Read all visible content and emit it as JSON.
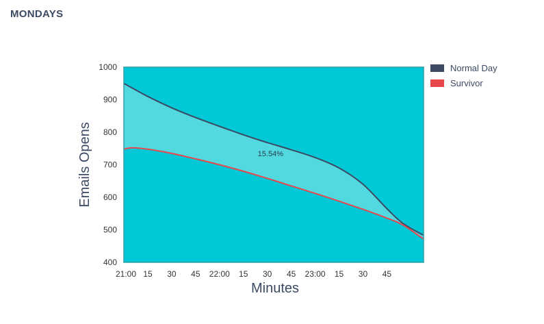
{
  "page": {
    "title": "MONDAYS"
  },
  "chart_data": {
    "type": "area",
    "x_ticks": [
      "21:00",
      "15",
      "30",
      "45",
      "22:00",
      "15",
      "30",
      "45",
      "23:00",
      "15",
      "30",
      "45"
    ],
    "x_tick_minutes": [
      0,
      15,
      30,
      45,
      60,
      75,
      90,
      105,
      120,
      135,
      150,
      165
    ],
    "xlabel": "Minutes",
    "ylabel": "Emails Opens",
    "ylim": [
      400,
      1000
    ],
    "y_ticks": [
      400,
      500,
      600,
      700,
      800,
      900,
      1000
    ],
    "xlim_minutes": [
      0,
      188
    ],
    "grid": false,
    "legend_position": "right",
    "series": [
      {
        "name": "Normal Day",
        "color": "#3b4a62",
        "x_minutes": [
          0,
          15,
          30,
          45,
          60,
          75,
          90,
          105,
          120,
          135,
          150,
          165,
          175,
          188
        ],
        "values": [
          950,
          910,
          875,
          845,
          818,
          792,
          768,
          746,
          722,
          690,
          640,
          565,
          520,
          483
        ]
      },
      {
        "name": "Survivor",
        "color": "#e8474c",
        "x_minutes": [
          0,
          5,
          15,
          30,
          45,
          60,
          75,
          90,
          105,
          120,
          135,
          150,
          165,
          175,
          188
        ],
        "values": [
          748,
          752,
          748,
          735,
          718,
          700,
          680,
          658,
          635,
          612,
          588,
          563,
          536,
          515,
          472
        ]
      }
    ],
    "fill_between_color": "#52d9e0",
    "plot_background": "#00c8d6",
    "annotation": {
      "text": "15.54%",
      "x_minutes": 92,
      "y": 735
    }
  }
}
